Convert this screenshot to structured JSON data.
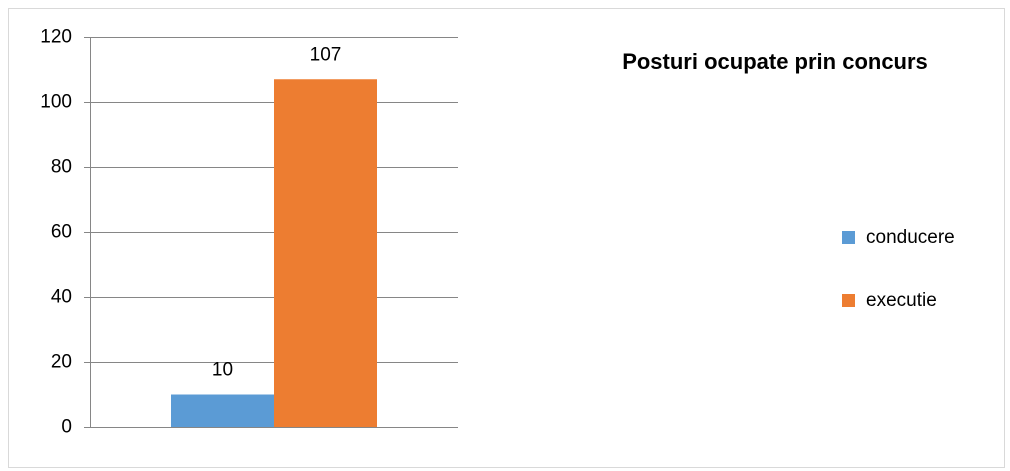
{
  "chart_data": {
    "type": "bar",
    "title": "Posturi ocupate prin concurs",
    "categories": [
      null
    ],
    "series": [
      {
        "name": "condecere",
        "color": "#5b9bd5",
        "values": [
          10
        ]
      },
      {
        "name": "executie",
        "color": "#ed7d31",
        "values": [
          107
        ]
      }
    ],
    "ylim": [
      0,
      120
    ],
    "yticks": [
      0,
      20,
      40,
      60,
      80,
      100,
      120
    ],
    "grid": true,
    "legend": "right"
  }
}
